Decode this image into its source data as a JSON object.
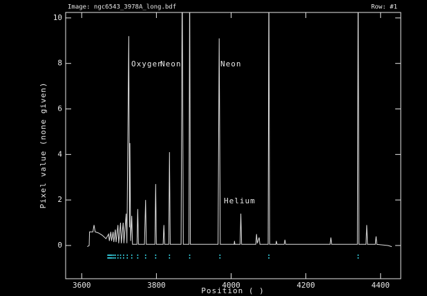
{
  "chart_data": {
    "type": "line",
    "title": "Image: ngc6543_3978A_long.bdf",
    "subtitle": "Row: #1",
    "x_label": "Position ( )",
    "y_label": "Pixel value (none given)",
    "annotations": [
      "Oxygen",
      "Neon",
      "Neon",
      "Helium"
    ],
    "xlim": [
      3557,
      4454
    ],
    "ylim": [
      -1.46,
      10.24
    ],
    "xticks": [
      3600,
      3800,
      4000,
      4200,
      4400
    ],
    "yticks": [
      0,
      2,
      4,
      6,
      8,
      10
    ],
    "line_color": "#e0e0e0",
    "marker_color": "#33c8d8",
    "x": [
      3615,
      3620,
      3621,
      3630,
      3633,
      3636,
      3645,
      3655,
      3665,
      3672,
      3674,
      3678,
      3680,
      3684,
      3686,
      3690,
      3692,
      3697,
      3699,
      3704,
      3706,
      3711,
      3713,
      3719,
      3721,
      3726,
      3728,
      3729,
      3731,
      3734,
      3736,
      3748,
      3750,
      3752,
      3768,
      3771,
      3773,
      3796,
      3798,
      3800,
      3818,
      3820,
      3822,
      3833,
      3835,
      3837,
      3866,
      3869,
      3872,
      3887,
      3889,
      3891,
      3965,
      3968,
      3971,
      4008,
      4009,
      4010,
      4024,
      4026,
      4028,
      4066,
      4068,
      4070,
      4075,
      4077,
      4099,
      4101,
      4103,
      4120,
      4121,
      4123,
      4142,
      4144,
      4146,
      4265,
      4267,
      4269,
      4338,
      4340,
      4342,
      4361,
      4363,
      4365,
      4386,
      4388,
      4390,
      4420,
      4430
    ],
    "values": [
      -0.05,
      0,
      0.6,
      0.6,
      0.9,
      0.6,
      0.55,
      0.45,
      0.3,
      0.5,
      0.2,
      0.6,
      0.2,
      0.6,
      0.15,
      0.7,
      0.15,
      0.9,
      0.1,
      1.0,
      0.1,
      1.0,
      0.1,
      1.4,
      0.1,
      9.2,
      0.8,
      4.5,
      0.2,
      1.3,
      0.05,
      0.05,
      1.6,
      0.05,
      0.05,
      2.0,
      0.05,
      0.05,
      2.7,
      0.05,
      0.05,
      0.9,
      0.05,
      0.05,
      4.1,
      0.05,
      0.05,
      12,
      0.05,
      0.05,
      12,
      0.05,
      0.05,
      9.1,
      0.05,
      0.05,
      0.2,
      0.05,
      0.05,
      1.4,
      0.05,
      0.05,
      0.5,
      0.1,
      0.35,
      0.05,
      0.05,
      12,
      0.05,
      0.05,
      0.2,
      0.05,
      0.05,
      0.25,
      0.05,
      0.05,
      0.35,
      0.05,
      0.05,
      12,
      0.05,
      0.05,
      0.9,
      0.05,
      0.05,
      0.4,
      0.05,
      0,
      -0.05
    ],
    "line_markers": [
      3670,
      3673,
      3676,
      3679,
      3682,
      3686,
      3690,
      3697,
      3704,
      3712,
      3722,
      3734,
      3750,
      3771,
      3798,
      3835,
      3889,
      3970,
      4101,
      4340
    ]
  }
}
